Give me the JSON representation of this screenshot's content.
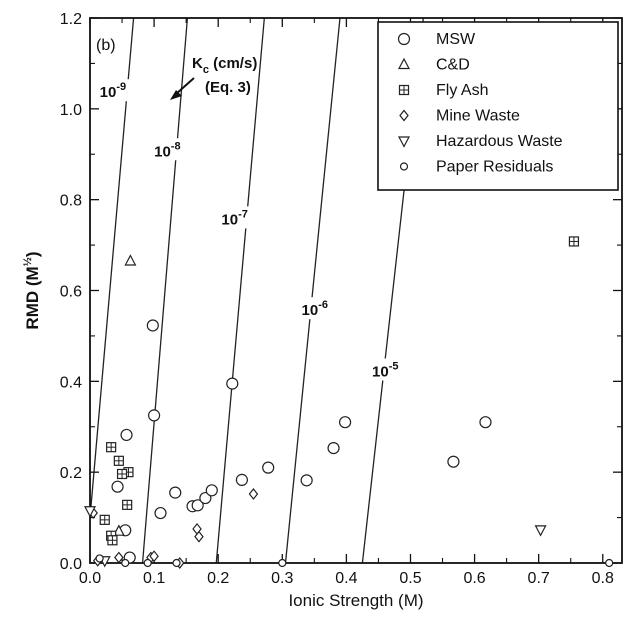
{
  "chart_data": {
    "type": "scatter",
    "panel_label": "(b)",
    "xlabel": "Ionic Strength (M)",
    "ylabel": "RMD (M^½)",
    "ylabel_main": "RMD (M",
    "ylabel_sup": "½",
    "ylabel_end": ")",
    "xlim": [
      0,
      0.83
    ],
    "ylim": [
      0,
      1.2
    ],
    "x_ticks": [
      0.0,
      0.1,
      0.2,
      0.3,
      0.4,
      0.5,
      0.6,
      0.7,
      0.8
    ],
    "x_tick_labels": [
      "0.0",
      "0.1",
      "0.2",
      "0.3",
      "0.4",
      "0.5",
      "0.6",
      "0.7",
      "0.8"
    ],
    "y_ticks": [
      0.0,
      0.2,
      0.4,
      0.6,
      0.8,
      1.0,
      1.2
    ],
    "y_tick_labels": [
      "0.0",
      "0.2",
      "0.4",
      "0.6",
      "0.8",
      "1.0",
      "1.2"
    ],
    "legend_position": "top-right",
    "annotation": {
      "line1": "K",
      "line1_sub": "c",
      "line1_rest": " (cm/s)",
      "line2": "(Eq. 3)"
    },
    "contours": [
      {
        "label_base": "10",
        "label_exp": "-9",
        "points": [
          [
            0.0,
            0.1
          ],
          [
            0.068,
            1.2
          ]
        ],
        "label_at": [
          0.04,
          1.03
        ]
      },
      {
        "label_base": "10",
        "label_exp": "-8",
        "points": [
          [
            0.082,
            0.0
          ],
          [
            0.152,
            1.2
          ]
        ],
        "label_at": [
          0.125,
          0.9
        ]
      },
      {
        "label_base": "10",
        "label_exp": "-7",
        "points": [
          [
            0.197,
            0.0
          ],
          [
            0.272,
            1.2
          ]
        ],
        "label_at": [
          0.23,
          0.75
        ]
      },
      {
        "label_base": "10",
        "label_exp": "-6",
        "points": [
          [
            0.305,
            0.0
          ],
          [
            0.39,
            1.2
          ]
        ],
        "label_at": [
          0.355,
          0.55
        ]
      },
      {
        "label_base": "10",
        "label_exp": "-5",
        "points": [
          [
            0.425,
            0.0
          ],
          [
            0.52,
            1.2
          ]
        ],
        "label_at": [
          0.465,
          0.415
        ]
      }
    ],
    "series": [
      {
        "name": "MSW",
        "marker": "circle",
        "points": [
          [
            0.057,
            0.282
          ],
          [
            0.098,
            0.523
          ],
          [
            0.1,
            0.325
          ],
          [
            0.043,
            0.168
          ],
          [
            0.11,
            0.11
          ],
          [
            0.133,
            0.155
          ],
          [
            0.16,
            0.125
          ],
          [
            0.168,
            0.127
          ],
          [
            0.18,
            0.143
          ],
          [
            0.19,
            0.16
          ],
          [
            0.222,
            0.395
          ],
          [
            0.237,
            0.183
          ],
          [
            0.278,
            0.21
          ],
          [
            0.338,
            0.182
          ],
          [
            0.38,
            0.253
          ],
          [
            0.398,
            0.31
          ],
          [
            0.567,
            0.223
          ],
          [
            0.617,
            0.31
          ],
          [
            0.055,
            0.072
          ],
          [
            0.062,
            0.012
          ]
        ]
      },
      {
        "name": "C&D",
        "marker": "triangle-up",
        "points": [
          [
            0.063,
            0.665
          ],
          [
            0.045,
            0.07
          ]
        ]
      },
      {
        "name": "Fly Ash",
        "marker": "square-cross",
        "points": [
          [
            0.033,
            0.255
          ],
          [
            0.045,
            0.225
          ],
          [
            0.06,
            0.2
          ],
          [
            0.058,
            0.128
          ],
          [
            0.023,
            0.095
          ],
          [
            0.033,
            0.06
          ],
          [
            0.035,
            0.05
          ],
          [
            0.755,
            0.708
          ],
          [
            0.05,
            0.196
          ]
        ]
      },
      {
        "name": "Mine Waste",
        "marker": "diamond",
        "points": [
          [
            0.17,
            0.058
          ],
          [
            0.167,
            0.075
          ],
          [
            0.255,
            0.152
          ],
          [
            0.095,
            0.012
          ],
          [
            0.1,
            0.015
          ],
          [
            0.045,
            0.012
          ],
          [
            0.012,
            0.005
          ],
          [
            0.005,
            0.11
          ],
          [
            0.14,
            0.0
          ]
        ]
      },
      {
        "name": "Hazardous Waste",
        "marker": "triangle-down",
        "points": [
          [
            0.0,
            0.115
          ],
          [
            0.703,
            0.073
          ],
          [
            0.023,
            0.005
          ]
        ]
      },
      {
        "name": "Paper Residuals",
        "marker": "circle-small",
        "points": [
          [
            0.015,
            0.01
          ],
          [
            0.055,
            0.0
          ],
          [
            0.09,
            0.0
          ],
          [
            0.135,
            0.0
          ],
          [
            0.3,
            0.0
          ],
          [
            0.81,
            0.0
          ]
        ]
      }
    ]
  }
}
